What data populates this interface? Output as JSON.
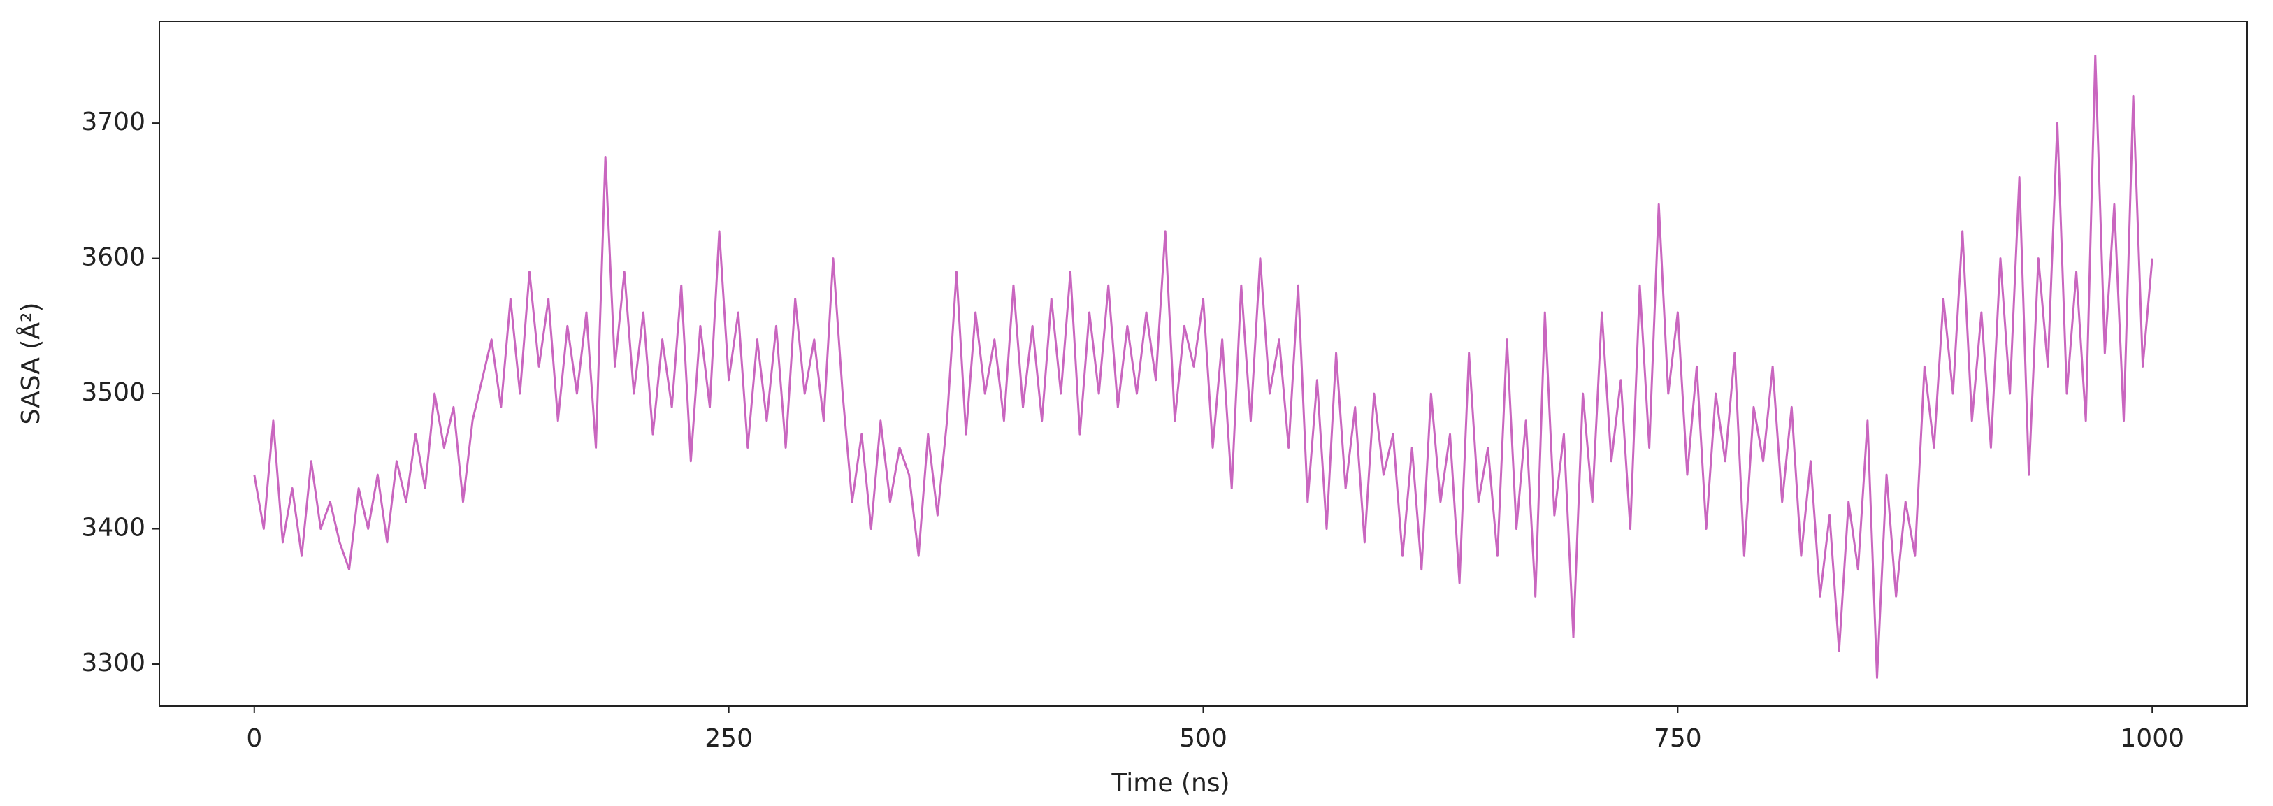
{
  "chart_data": {
    "type": "line",
    "x_label": "Time (ns)",
    "y_label": "SASA (Å²)",
    "xlim": [
      -50,
      1050
    ],
    "ylim": [
      3269,
      3775
    ],
    "xticks": [
      0,
      250,
      500,
      750,
      1000
    ],
    "yticks": [
      3300,
      3400,
      3500,
      3600,
      3700
    ],
    "x": [
      0,
      5,
      10,
      15,
      20,
      25,
      30,
      35,
      40,
      45,
      50,
      55,
      60,
      65,
      70,
      75,
      80,
      85,
      90,
      95,
      100,
      105,
      110,
      115,
      120,
      125,
      130,
      135,
      140,
      145,
      150,
      155,
      160,
      165,
      170,
      175,
      180,
      185,
      190,
      195,
      200,
      205,
      210,
      215,
      220,
      225,
      230,
      235,
      240,
      245,
      250,
      255,
      260,
      265,
      270,
      275,
      280,
      285,
      290,
      295,
      300,
      305,
      310,
      315,
      320,
      325,
      330,
      335,
      340,
      345,
      350,
      355,
      360,
      365,
      370,
      375,
      380,
      385,
      390,
      395,
      400,
      405,
      410,
      415,
      420,
      425,
      430,
      435,
      440,
      445,
      450,
      455,
      460,
      465,
      470,
      475,
      480,
      485,
      490,
      495,
      500,
      505,
      510,
      515,
      520,
      525,
      530,
      535,
      540,
      545,
      550,
      555,
      560,
      565,
      570,
      575,
      580,
      585,
      590,
      595,
      600,
      605,
      610,
      615,
      620,
      625,
      630,
      635,
      640,
      645,
      650,
      655,
      660,
      665,
      670,
      675,
      680,
      685,
      690,
      695,
      700,
      705,
      710,
      715,
      720,
      725,
      730,
      735,
      740,
      745,
      750,
      755,
      760,
      765,
      770,
      775,
      780,
      785,
      790,
      795,
      800,
      805,
      810,
      815,
      820,
      825,
      830,
      835,
      840,
      845,
      850,
      855,
      860,
      865,
      870,
      875,
      880,
      885,
      890,
      895,
      900,
      905,
      910,
      915,
      920,
      925,
      930,
      935,
      940,
      945,
      950,
      955,
      960,
      965,
      970,
      975,
      980,
      985,
      990,
      995,
      1000
    ],
    "series": [
      {
        "color": "#c966bf",
        "values": [
          3440,
          3400,
          3480,
          3390,
          3430,
          3380,
          3450,
          3400,
          3420,
          3390,
          3370,
          3430,
          3400,
          3440,
          3390,
          3450,
          3420,
          3470,
          3430,
          3500,
          3460,
          3490,
          3420,
          3480,
          3510,
          3540,
          3490,
          3570,
          3500,
          3590,
          3520,
          3570,
          3480,
          3550,
          3500,
          3560,
          3460,
          3675,
          3520,
          3590,
          3500,
          3560,
          3470,
          3540,
          3490,
          3580,
          3450,
          3550,
          3490,
          3620,
          3510,
          3560,
          3460,
          3540,
          3480,
          3550,
          3460,
          3570,
          3500,
          3540,
          3480,
          3600,
          3500,
          3420,
          3470,
          3400,
          3480,
          3420,
          3460,
          3440,
          3380,
          3470,
          3410,
          3480,
          3590,
          3470,
          3560,
          3500,
          3540,
          3480,
          3580,
          3490,
          3550,
          3480,
          3570,
          3500,
          3590,
          3470,
          3560,
          3500,
          3580,
          3490,
          3550,
          3500,
          3560,
          3510,
          3620,
          3480,
          3550,
          3520,
          3570,
          3460,
          3540,
          3430,
          3580,
          3480,
          3600,
          3500,
          3540,
          3460,
          3580,
          3420,
          3510,
          3400,
          3530,
          3430,
          3490,
          3390,
          3500,
          3440,
          3470,
          3380,
          3460,
          3370,
          3500,
          3420,
          3470,
          3360,
          3530,
          3420,
          3460,
          3380,
          3540,
          3400,
          3480,
          3350,
          3560,
          3410,
          3470,
          3320,
          3500,
          3420,
          3560,
          3450,
          3510,
          3400,
          3580,
          3460,
          3640,
          3500,
          3560,
          3440,
          3520,
          3400,
          3500,
          3450,
          3530,
          3380,
          3490,
          3450,
          3520,
          3420,
          3490,
          3380,
          3450,
          3350,
          3410,
          3310,
          3420,
          3370,
          3480,
          3290,
          3440,
          3350,
          3420,
          3380,
          3520,
          3460,
          3570,
          3500,
          3620,
          3480,
          3560,
          3460,
          3600,
          3500,
          3660,
          3440,
          3600,
          3520,
          3700,
          3500,
          3590,
          3480,
          3750,
          3530,
          3640,
          3480,
          3720,
          3520,
          3600
        ]
      }
    ]
  }
}
